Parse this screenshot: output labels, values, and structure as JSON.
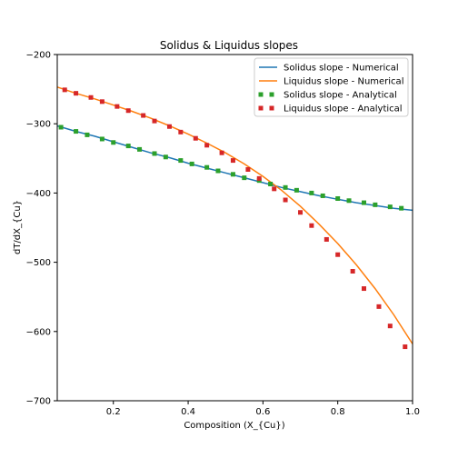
{
  "chart_data": {
    "type": "line",
    "title": "Solidus & Liquidus slopes",
    "xlabel": "Composition (X_{Cu})",
    "ylabel": "dT/dX_{Cu}",
    "xlim": [
      0.05,
      1.0
    ],
    "ylim": [
      -700,
      -200
    ],
    "xticks": [
      0.2,
      0.4,
      0.6,
      0.8,
      1.0
    ],
    "xtick_labels": [
      "0.2",
      "0.4",
      "0.6",
      "0.8",
      "1.0"
    ],
    "yticks": [
      -700,
      -600,
      -500,
      -400,
      -300,
      -200
    ],
    "ytick_labels": [
      "−700",
      "−600",
      "−500",
      "−400",
      "−300",
      "−200"
    ],
    "grid": false,
    "legend_position": "top-right",
    "x": [
      0.05,
      0.1,
      0.15,
      0.2,
      0.25,
      0.3,
      0.35,
      0.4,
      0.45,
      0.5,
      0.55,
      0.6,
      0.65,
      0.7,
      0.75,
      0.8,
      0.85,
      0.9,
      0.95,
      1.0
    ],
    "series": [
      {
        "name": "Solidus slope - Numerical",
        "style": "line",
        "color": "#1f77b4",
        "x": [
          0.05,
          0.1,
          0.15,
          0.2,
          0.25,
          0.3,
          0.35,
          0.4,
          0.45,
          0.5,
          0.55,
          0.6,
          0.65,
          0.7,
          0.75,
          0.8,
          0.85,
          0.9,
          0.95,
          1.0
        ],
        "values": [
          -303,
          -311,
          -318,
          -326,
          -334,
          -342,
          -349,
          -357,
          -364,
          -371,
          -378,
          -385,
          -392,
          -398,
          -404,
          -409,
          -414,
          -418,
          -422,
          -425
        ]
      },
      {
        "name": "Liquidus slope - Numerical",
        "style": "line",
        "color": "#ff7f0e",
        "x": [
          0.05,
          0.1,
          0.15,
          0.2,
          0.25,
          0.3,
          0.35,
          0.4,
          0.45,
          0.5,
          0.55,
          0.6,
          0.65,
          0.7,
          0.75,
          0.8,
          0.85,
          0.9,
          0.95,
          1.0
        ],
        "values": [
          -247,
          -256,
          -264,
          -273,
          -282,
          -292,
          -303,
          -315,
          -328,
          -342,
          -358,
          -376,
          -396,
          -419,
          -445,
          -473,
          -504,
          -538,
          -576,
          -618
        ]
      },
      {
        "name": "Solidus slope - Analytical",
        "style": "markers",
        "color": "#2ca02c",
        "x": [
          0.06,
          0.1,
          0.13,
          0.17,
          0.2,
          0.24,
          0.27,
          0.31,
          0.34,
          0.38,
          0.41,
          0.45,
          0.48,
          0.52,
          0.55,
          0.59,
          0.62,
          0.66,
          0.69,
          0.73,
          0.76,
          0.8,
          0.83,
          0.87,
          0.9,
          0.94,
          0.97
        ],
        "values": [
          -305,
          -311,
          -316,
          -322,
          -327,
          -332,
          -337,
          -343,
          -348,
          -353,
          -358,
          -363,
          -368,
          -373,
          -378,
          -382,
          -387,
          -392,
          -396,
          -400,
          -404,
          -408,
          -411,
          -414,
          -417,
          -420,
          -422
        ]
      },
      {
        "name": "Liquidus slope - Analytical",
        "style": "markers",
        "color": "#d62728",
        "x": [
          0.07,
          0.1,
          0.14,
          0.17,
          0.21,
          0.24,
          0.28,
          0.31,
          0.35,
          0.38,
          0.42,
          0.45,
          0.49,
          0.52,
          0.56,
          0.59,
          0.63,
          0.66,
          0.7,
          0.73,
          0.77,
          0.8,
          0.84,
          0.87,
          0.91,
          0.94,
          0.98
        ],
        "values": [
          -251,
          -256,
          -262,
          -268,
          -275,
          -281,
          -288,
          -296,
          -304,
          -312,
          -321,
          -331,
          -342,
          -353,
          -366,
          -379,
          -394,
          -410,
          -428,
          -447,
          -467,
          -489,
          -513,
          -538,
          -564,
          -592,
          -622
        ]
      }
    ]
  }
}
